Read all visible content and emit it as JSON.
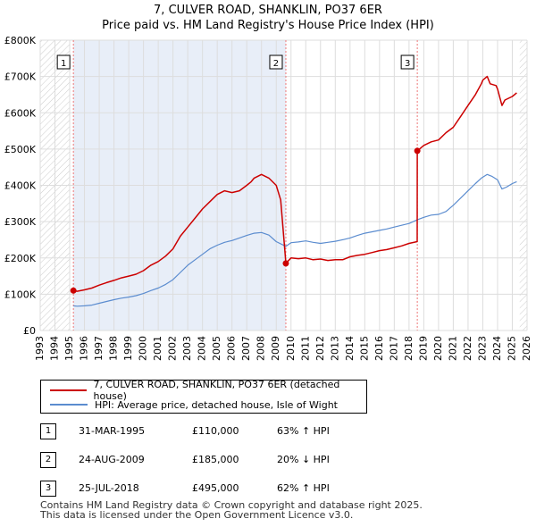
{
  "title_line1": "7, CULVER ROAD, SHANKLIN, PO37 6ER",
  "title_line2": "Price paid vs. HM Land Registry's House Price Index (HPI)",
  "legend": {
    "property_label": "7, CULVER ROAD, SHANKLIN, PO37 6ER (detached house)",
    "hpi_label": "HPI: Average price, detached house, Isle of Wight"
  },
  "sales": [
    {
      "num": "1",
      "date": "31-MAR-1995",
      "price": "£110,000",
      "hpi": "63% ↑ HPI"
    },
    {
      "num": "2",
      "date": "24-AUG-2009",
      "price": "£185,000",
      "hpi": "20% ↓ HPI"
    },
    {
      "num": "3",
      "date": "25-JUL-2018",
      "price": "£495,000",
      "hpi": "62% ↑ HPI"
    }
  ],
  "footer_line1": "Contains HM Land Registry data © Crown copyright and database right 2025.",
  "footer_line2": "This data is licensed under the Open Government Licence v3.0.",
  "colors": {
    "property": "#cc0000",
    "hpi": "#5b8ccf",
    "highlight": "#e8eef8",
    "hatch": "#cccccc",
    "sale_line": "#ee7777"
  },
  "chart_data": {
    "type": "line",
    "x_range": [
      1993,
      2026
    ],
    "ylim": [
      0,
      800000
    ],
    "y_ticks": [
      0,
      100000,
      200000,
      300000,
      400000,
      500000,
      600000,
      700000,
      800000
    ],
    "y_tick_labels": [
      "£0",
      "£100K",
      "£200K",
      "£300K",
      "£400K",
      "£500K",
      "£600K",
      "£700K",
      "£800K"
    ],
    "x_ticks": [
      1993,
      1994,
      1995,
      1996,
      1997,
      1998,
      1999,
      2000,
      2001,
      2002,
      2003,
      2004,
      2005,
      2006,
      2007,
      2008,
      2009,
      2010,
      2011,
      2012,
      2013,
      2014,
      2015,
      2016,
      2017,
      2018,
      2019,
      2020,
      2021,
      2022,
      2023,
      2024,
      2025,
      2026
    ],
    "data_start": 1995.0,
    "data_end": 2025.5,
    "sale_markers": [
      {
        "label": "1",
        "x": 1995.25,
        "y": 110000
      },
      {
        "label": "2",
        "x": 2009.65,
        "y": 185000
      },
      {
        "label": "3",
        "x": 2018.56,
        "y": 495000
      }
    ],
    "series": [
      {
        "name": "7, CULVER ROAD, SHANKLIN, PO37 6ER (detached house)",
        "x": [
          1995.25,
          1995.5,
          1996,
          1996.5,
          1997,
          1997.5,
          1998,
          1998.5,
          1999,
          1999.5,
          2000,
          2000.5,
          2001,
          2001.5,
          2002,
          2002.5,
          2003,
          2003.5,
          2004,
          2004.5,
          2005,
          2005.5,
          2006,
          2006.5,
          2007,
          2007.3,
          2007.5,
          2008,
          2008.5,
          2009,
          2009.3,
          2009.6,
          2009.65,
          2010,
          2010.5,
          2011,
          2011.5,
          2012,
          2012.5,
          2013,
          2013.5,
          2014,
          2014.5,
          2015,
          2015.5,
          2016,
          2016.5,
          2017,
          2017.5,
          2018,
          2018.55,
          2018.56,
          2019,
          2019.5,
          2020,
          2020.5,
          2021,
          2021.5,
          2022,
          2022.5,
          2022.9,
          2023,
          2023.3,
          2023.5,
          2023.9,
          2024,
          2024.3,
          2024.5,
          2025,
          2025.3
        ],
        "values": [
          110000,
          108000,
          112000,
          117000,
          125000,
          132000,
          138000,
          145000,
          150000,
          155000,
          165000,
          180000,
          190000,
          205000,
          225000,
          260000,
          285000,
          310000,
          335000,
          355000,
          375000,
          385000,
          380000,
          385000,
          400000,
          410000,
          420000,
          430000,
          420000,
          400000,
          360000,
          210000,
          185000,
          200000,
          198000,
          200000,
          195000,
          197000,
          193000,
          195000,
          195000,
          203000,
          207000,
          210000,
          215000,
          220000,
          223000,
          228000,
          233000,
          240000,
          245000,
          495000,
          510000,
          520000,
          525000,
          545000,
          560000,
          590000,
          620000,
          650000,
          680000,
          690000,
          700000,
          680000,
          675000,
          665000,
          620000,
          635000,
          645000,
          655000
        ]
      },
      {
        "name": "HPI: Average price, detached house, Isle of Wight",
        "x": [
          1995.25,
          1995.5,
          1996,
          1996.5,
          1997,
          1997.5,
          1998,
          1998.5,
          1999,
          1999.5,
          2000,
          2000.5,
          2001,
          2001.5,
          2002,
          2002.5,
          2003,
          2003.5,
          2004,
          2004.5,
          2005,
          2005.5,
          2006,
          2006.5,
          2007,
          2007.5,
          2008,
          2008.5,
          2009,
          2009.65,
          2010,
          2010.5,
          2011,
          2011.5,
          2012,
          2012.5,
          2013,
          2013.5,
          2014,
          2014.5,
          2015,
          2015.5,
          2016,
          2016.5,
          2017,
          2017.5,
          2018,
          2018.56,
          2019,
          2019.5,
          2020,
          2020.5,
          2021,
          2021.5,
          2022,
          2022.5,
          2022.9,
          2023.3,
          2023.6,
          2024,
          2024.3,
          2024.6,
          2025,
          2025.3
        ],
        "values": [
          68000,
          67000,
          68000,
          70000,
          75000,
          80000,
          85000,
          89000,
          92000,
          96000,
          102000,
          110000,
          117000,
          127000,
          140000,
          160000,
          180000,
          195000,
          210000,
          225000,
          235000,
          243000,
          248000,
          255000,
          262000,
          268000,
          270000,
          263000,
          245000,
          232000,
          242000,
          244000,
          247000,
          243000,
          240000,
          243000,
          246000,
          250000,
          255000,
          262000,
          268000,
          272000,
          276000,
          280000,
          285000,
          290000,
          295000,
          305000,
          312000,
          318000,
          320000,
          328000,
          345000,
          365000,
          385000,
          405000,
          420000,
          430000,
          425000,
          415000,
          390000,
          395000,
          405000,
          410000
        ]
      }
    ]
  }
}
